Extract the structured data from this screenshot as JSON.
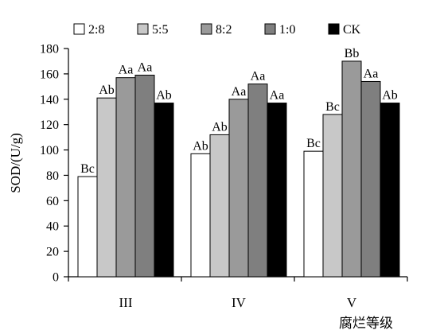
{
  "chart_data": {
    "type": "bar",
    "categories": [
      "III",
      "IV",
      "V"
    ],
    "series": [
      {
        "name": "2:8",
        "color": "#ffffff",
        "values": [
          79,
          97,
          99
        ],
        "labels": [
          "Bc",
          "Ab",
          "Bc"
        ]
      },
      {
        "name": "5:5",
        "color": "#c8c8c8",
        "values": [
          141,
          112,
          128
        ],
        "labels": [
          "Ab",
          "Ab",
          "Bc"
        ]
      },
      {
        "name": "8:2",
        "color": "#9a9a9a",
        "values": [
          157,
          140,
          170
        ],
        "labels": [
          "Aa",
          "Aa",
          "Bb"
        ]
      },
      {
        "name": "1:0",
        "color": "#7f7f7f",
        "values": [
          159,
          152,
          154
        ],
        "labels": [
          "Aa",
          "Aa",
          "Aa"
        ]
      },
      {
        "name": "CK",
        "color": "#000000",
        "values": [
          137,
          137,
          137
        ],
        "labels": [
          "Ab",
          "Aa",
          "Ab"
        ]
      }
    ],
    "ylabel": "SOD/(U/g)",
    "xlabel": "腐烂等级",
    "ylim": [
      0,
      180
    ],
    "yticks": [
      0,
      20,
      40,
      60,
      80,
      100,
      120,
      140,
      160,
      180
    ],
    "grid": false,
    "legend": "top"
  }
}
